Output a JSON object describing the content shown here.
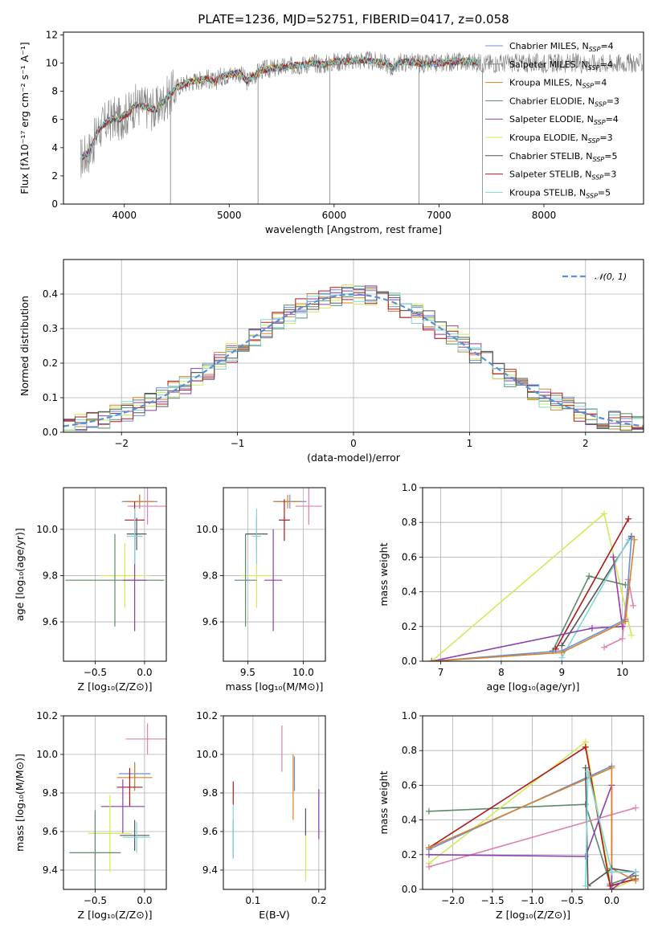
{
  "figure": {
    "title": "PLATE=1236, MJD=52751, FIBERID=0417, z=0.058"
  },
  "chart_data": [
    {
      "id": "spectrum",
      "type": "line",
      "xlabel": "wavelength [Angstrom, rest frame]",
      "ylabel": "Flux [fλ10⁻¹⁷ erg cm⁻² s⁻¹ A⁻¹]",
      "xlim": [
        3420,
        8950
      ],
      "ylim": [
        0,
        12.2
      ],
      "xticks": [
        4000,
        5000,
        6000,
        7000,
        8000
      ],
      "xtick_labels": [
        "4000",
        "5000",
        "6000",
        "7000",
        "8000"
      ],
      "yticks": [
        0,
        2,
        4,
        6,
        8,
        10,
        12
      ],
      "ytick_labels": [
        "0",
        "2",
        "4",
        "6",
        "8",
        "10",
        "12"
      ],
      "grid": false,
      "legend_position": "top-right",
      "continuum": [
        [
          3580,
          3.2
        ],
        [
          3650,
          3.6
        ],
        [
          3700,
          4.2
        ],
        [
          3750,
          5.2
        ],
        [
          3800,
          5.6
        ],
        [
          3850,
          5.9
        ],
        [
          3900,
          6.1
        ],
        [
          3950,
          6.0
        ],
        [
          4000,
          6.3
        ],
        [
          4050,
          6.5
        ],
        [
          4100,
          7.0
        ],
        [
          4200,
          6.9
        ],
        [
          4300,
          6.7
        ],
        [
          4400,
          7.5
        ],
        [
          4500,
          8.3
        ],
        [
          4600,
          8.6
        ],
        [
          4700,
          8.8
        ],
        [
          4800,
          8.9
        ],
        [
          4860,
          8.6
        ],
        [
          4900,
          9.0
        ],
        [
          5000,
          9.2
        ],
        [
          5100,
          9.3
        ],
        [
          5170,
          8.7
        ],
        [
          5200,
          8.9
        ],
        [
          5300,
          9.5
        ],
        [
          5400,
          9.6
        ],
        [
          5500,
          9.7
        ],
        [
          5600,
          9.8
        ],
        [
          5700,
          9.9
        ],
        [
          5800,
          10.0
        ],
        [
          5900,
          9.9
        ],
        [
          6000,
          10.1
        ],
        [
          6100,
          10.1
        ],
        [
          6200,
          10.2
        ],
        [
          6300,
          10.2
        ],
        [
          6400,
          10.1
        ],
        [
          6500,
          10.0
        ],
        [
          6560,
          9.6
        ],
        [
          6600,
          10.0
        ],
        [
          6700,
          10.1
        ],
        [
          6800,
          10.0
        ],
        [
          6900,
          9.9
        ],
        [
          7000,
          10.0
        ],
        [
          7100,
          10.1
        ],
        [
          7200,
          10.1
        ],
        [
          7300,
          10.1
        ],
        [
          7400,
          10.0
        ]
      ],
      "spikes": [
        [
          4440,
          0
        ],
        [
          5275,
          0
        ],
        [
          5960,
          0
        ],
        [
          6810,
          0
        ],
        [
          7415,
          0
        ]
      ],
      "series": [
        {
          "name": "Chabrier MILES, N",
          "sub": "SSP",
          "eq": "=4",
          "color": "#6a8fd8"
        },
        {
          "name": "Salpeter MILES, N",
          "sub": "SSP",
          "eq": "=4",
          "color": "#8a8a8a"
        },
        {
          "name": "Kroupa MILES, N",
          "sub": "SSP",
          "eq": "=4",
          "color": "#d7822a"
        },
        {
          "name": "Chabrier ELODIE, N",
          "sub": "SSP",
          "eq": "=3",
          "color": "#5d8a68"
        },
        {
          "name": "Salpeter ELODIE, N",
          "sub": "SSP",
          "eq": "=4",
          "color": "#8b3fb0"
        },
        {
          "name": "Kroupa ELODIE, N",
          "sub": "SSP",
          "eq": "=3",
          "color": "#d4e85a"
        },
        {
          "name": "Chabrier STELIB, N",
          "sub": "SSP",
          "eq": "=5",
          "color": "#555555"
        },
        {
          "name": "Salpeter STELIB, N",
          "sub": "SSP",
          "eq": "=3",
          "color": "#b01818"
        },
        {
          "name": "Kroupa STELIB, N",
          "sub": "SSP",
          "eq": "=5",
          "color": "#7fd6d9"
        }
      ]
    },
    {
      "id": "residuals",
      "type": "line",
      "xlabel": "(data-model)/error",
      "ylabel": "Normed distribution",
      "xlim": [
        -2.5,
        2.5
      ],
      "ylim": [
        0,
        0.5
      ],
      "xticks": [
        -2,
        -1,
        0,
        1,
        2
      ],
      "xtick_labels": [
        "−2",
        "−1",
        "0",
        "1",
        "2"
      ],
      "yticks": [
        0.0,
        0.1,
        0.2,
        0.3,
        0.4
      ],
      "ytick_labels": [
        "0.0",
        "0.1",
        "0.2",
        "0.3",
        "0.4"
      ],
      "grid": true,
      "legend_position": "top-right",
      "legend_label": "𝒩(0, 1)",
      "gaussian_color": "#5b8fd4",
      "bin_width": 0.1,
      "hist_colors": [
        "#6a8fd8",
        "#d7822a",
        "#5d8a68",
        "#8b3fb0",
        "#d4e85a",
        "#b01818",
        "#7fd6d9",
        "#555555"
      ]
    },
    {
      "id": "age-vs-Z",
      "type": "scatter",
      "xlabel": "Z [log₁₀(Z/Z⊙)]",
      "ylabel": "age  [log₁₀(age/yr)]",
      "xlim": [
        -0.82,
        0.22
      ],
      "ylim": [
        9.43,
        10.18
      ],
      "xticks": [
        -0.5,
        0.0
      ],
      "xtick_labels": [
        "−0.5",
        "0.0"
      ],
      "yticks": [
        9.6,
        9.8,
        10.0
      ],
      "ytick_labels": [
        "9.6",
        "9.8",
        "10.0"
      ],
      "grid": true,
      "points": [
        {
          "x": -0.05,
          "y": 10.12,
          "xe": 0.18,
          "ye": 0.03,
          "color": "#6a8fd8"
        },
        {
          "x": -0.05,
          "y": 10.12,
          "xe": 0.15,
          "ye": 0.03,
          "color": "#d7822a"
        },
        {
          "x": 0.03,
          "y": 10.1,
          "xe": 0.2,
          "ye": 0.08,
          "color": "#e07fb0"
        },
        {
          "x": -0.1,
          "y": 10.04,
          "xe": 0.1,
          "ye": 0.08,
          "color": "#b01818"
        },
        {
          "x": -0.08,
          "y": 9.98,
          "xe": 0.1,
          "ye": 0.07,
          "color": "#555555"
        },
        {
          "x": -0.2,
          "y": 9.8,
          "xe": 0.25,
          "ye": 0.14,
          "color": "#d4e85a"
        },
        {
          "x": -0.3,
          "y": 9.78,
          "xe": 0.5,
          "ye": 0.2,
          "color": "#5d8a68"
        },
        {
          "x": -0.1,
          "y": 9.78,
          "xe": 0.12,
          "ye": 0.22,
          "color": "#8b3fb0"
        },
        {
          "x": -0.1,
          "y": 9.97,
          "xe": 0.08,
          "ye": 0.12,
          "color": "#7fd6d9"
        }
      ]
    },
    {
      "id": "age-vs-mass",
      "type": "scatter",
      "xlabel": "mass [log₁₀(M/M⊙)]",
      "ylabel": "",
      "xlim": [
        9.28,
        10.2
      ],
      "ylim": [
        9.43,
        10.18
      ],
      "xticks": [
        9.5,
        10.0
      ],
      "xtick_labels": [
        "9.5",
        "10.0"
      ],
      "yticks": [
        9.6,
        9.8,
        10.0
      ],
      "ytick_labels": [
        "9.6",
        "9.8",
        "10.0"
      ],
      "grid": true,
      "points": [
        {
          "x": 9.88,
          "y": 10.12,
          "xe": 0.15,
          "ye": 0.03,
          "color": "#6a8fd8"
        },
        {
          "x": 9.86,
          "y": 10.12,
          "xe": 0.12,
          "ye": 0.03,
          "color": "#d7822a"
        },
        {
          "x": 10.05,
          "y": 10.1,
          "xe": 0.12,
          "ye": 0.08,
          "color": "#e07fb0"
        },
        {
          "x": 9.83,
          "y": 10.04,
          "xe": 0.05,
          "ye": 0.09,
          "color": "#b01818"
        },
        {
          "x": 9.58,
          "y": 9.98,
          "xe": 0.1,
          "ye": 0.07,
          "color": "#555555"
        },
        {
          "x": 9.58,
          "y": 9.8,
          "xe": 0.15,
          "ye": 0.14,
          "color": "#d4e85a"
        },
        {
          "x": 9.48,
          "y": 9.78,
          "xe": 0.1,
          "ye": 0.2,
          "color": "#5d8a68"
        },
        {
          "x": 9.73,
          "y": 9.78,
          "xe": 0.08,
          "ye": 0.22,
          "color": "#8b3fb0"
        },
        {
          "x": 9.58,
          "y": 9.97,
          "xe": 0.04,
          "ye": 0.12,
          "color": "#7fd6d9"
        }
      ]
    },
    {
      "id": "weight-vs-age",
      "type": "line",
      "xlabel": "age  [log₁₀(age/yr)]",
      "ylabel": "mass weight",
      "xlim": [
        6.7,
        10.35
      ],
      "ylim": [
        0,
        1.0
      ],
      "xticks": [
        7,
        8,
        9,
        10
      ],
      "xtick_labels": [
        "7",
        "8",
        "9",
        "10"
      ],
      "yticks": [
        0.0,
        0.2,
        0.4,
        0.6,
        0.8,
        1.0
      ],
      "ytick_labels": [
        "0.0",
        "0.2",
        "0.4",
        "0.6",
        "0.8",
        "1.0"
      ],
      "grid": true,
      "series": [
        {
          "color": "#d4e85a",
          "pts": [
            [
              6.85,
              0.0
            ],
            [
              9.7,
              0.85
            ],
            [
              10.15,
              0.15
            ]
          ]
        },
        {
          "color": "#e07fb0",
          "pts": [
            [
              9.7,
              0.08
            ],
            [
              10.0,
              0.13
            ],
            [
              10.1,
              0.47
            ],
            [
              10.18,
              0.32
            ]
          ]
        },
        {
          "color": "#5d8a68",
          "pts": [
            [
              8.85,
              0.06
            ],
            [
              9.45,
              0.49
            ],
            [
              10.05,
              0.44
            ]
          ]
        },
        {
          "color": "#b01818",
          "pts": [
            [
              8.9,
              0.07
            ],
            [
              10.1,
              0.82
            ]
          ]
        },
        {
          "color": "#555555",
          "pts": [
            [
              9.0,
              0.09
            ],
            [
              10.15,
              0.72
            ]
          ]
        },
        {
          "color": "#7fd6d9",
          "pts": [
            [
              9.0,
              0.02
            ],
            [
              10.1,
              0.7
            ]
          ]
        },
        {
          "color": "#8b3fb0",
          "pts": [
            [
              6.85,
              0.0
            ],
            [
              9.5,
              0.19
            ],
            [
              10.0,
              0.2
            ],
            [
              9.85,
              0.6
            ]
          ]
        },
        {
          "color": "#6a8fd8",
          "pts": [
            [
              6.85,
              0.0
            ],
            [
              9.0,
              0.06
            ],
            [
              10.05,
              0.24
            ],
            [
              10.15,
              0.71
            ]
          ]
        },
        {
          "color": "#d7822a",
          "pts": [
            [
              6.85,
              0.0
            ],
            [
              9.0,
              0.05
            ],
            [
              10.05,
              0.23
            ],
            [
              10.2,
              0.7
            ]
          ]
        }
      ]
    },
    {
      "id": "mass-vs-Z",
      "type": "scatter",
      "xlabel": "Z [log₁₀(Z/Z⊙)]",
      "ylabel": "mass [log₁₀(M/M⊙)]",
      "xlim": [
        -0.82,
        0.22
      ],
      "ylim": [
        9.3,
        10.2
      ],
      "xticks": [
        -0.5,
        0.0
      ],
      "xtick_labels": [
        "−0.5",
        "0.0"
      ],
      "yticks": [
        9.4,
        9.6,
        9.8,
        10.0,
        10.2
      ],
      "ytick_labels": [
        "9.4",
        "9.6",
        "9.8",
        "10.0",
        "10.2"
      ],
      "grid": true,
      "points": [
        {
          "x": 0.03,
          "y": 10.08,
          "xe": 0.22,
          "ye": 0.08,
          "color": "#e07fb0"
        },
        {
          "x": -0.1,
          "y": 9.9,
          "xe": 0.16,
          "ye": 0.06,
          "color": "#6a8fd8"
        },
        {
          "x": -0.1,
          "y": 9.88,
          "xe": 0.18,
          "ye": 0.07,
          "color": "#d7822a"
        },
        {
          "x": -0.15,
          "y": 9.83,
          "xe": 0.13,
          "ye": 0.1,
          "color": "#b01818"
        },
        {
          "x": -0.22,
          "y": 9.73,
          "xe": 0.22,
          "ye": 0.14,
          "color": "#8b3fb0"
        },
        {
          "x": -0.35,
          "y": 9.59,
          "xe": 0.22,
          "ye": 0.2,
          "color": "#d4e85a"
        },
        {
          "x": -0.5,
          "y": 9.49,
          "xe": 0.26,
          "ye": 0.22,
          "color": "#5d8a68"
        },
        {
          "x": -0.1,
          "y": 9.58,
          "xe": 0.15,
          "ye": 0.08,
          "color": "#555555"
        },
        {
          "x": -0.08,
          "y": 9.57,
          "xe": 0.14,
          "ye": 0.08,
          "color": "#7fd6d9"
        }
      ]
    },
    {
      "id": "mass-vs-EBV",
      "type": "scatter",
      "xlabel": "E(B-V)",
      "ylabel": "",
      "xlim": [
        0.055,
        0.21
      ],
      "ylim": [
        9.3,
        10.2
      ],
      "xticks": [
        0.1,
        0.2
      ],
      "xtick_labels": [
        "0.1",
        "0.2"
      ],
      "yticks": [
        9.4,
        9.6,
        9.8,
        10.0,
        10.2
      ],
      "ytick_labels": [
        "9.4",
        "9.6",
        "9.8",
        "10.0",
        "10.2"
      ],
      "grid": true,
      "points": [
        {
          "x": 0.144,
          "y": 10.03,
          "xe": 0.0,
          "ye": 0.12,
          "color": "#e07fb0"
        },
        {
          "x": 0.163,
          "y": 9.9,
          "xe": 0.0,
          "ye": 0.09,
          "color": "#6a8fd8"
        },
        {
          "x": 0.161,
          "y": 9.83,
          "xe": 0.0,
          "ye": 0.17,
          "color": "#d7822a"
        },
        {
          "x": 0.07,
          "y": 9.8,
          "xe": 0.0,
          "ye": 0.06,
          "color": "#b01818"
        },
        {
          "x": 0.2,
          "y": 9.69,
          "xe": 0.0,
          "ye": 0.13,
          "color": "#8b3fb0"
        },
        {
          "x": 0.18,
          "y": 9.52,
          "xe": 0.0,
          "ye": 0.18,
          "color": "#d4e85a"
        },
        {
          "x": 0.07,
          "y": 9.56,
          "xe": 0.0,
          "ye": 0.1,
          "color": "#5d8a68"
        },
        {
          "x": 0.18,
          "y": 9.65,
          "xe": 0.0,
          "ye": 0.07,
          "color": "#555555"
        },
        {
          "x": 0.07,
          "y": 9.6,
          "xe": 0.0,
          "ye": 0.14,
          "color": "#7fd6d9"
        }
      ]
    },
    {
      "id": "weight-vs-Z",
      "type": "line",
      "xlabel": "Z [log₁₀(Z/Z⊙)]",
      "ylabel": "mass weight",
      "xlim": [
        -2.38,
        0.4
      ],
      "ylim": [
        0,
        1.0
      ],
      "xticks": [
        -2.0,
        -1.5,
        -1.0,
        -0.5,
        0.0
      ],
      "xtick_labels": [
        "−2.0",
        "−1.5",
        "−1.0",
        "−0.5",
        "0.0"
      ],
      "yticks": [
        0.0,
        0.2,
        0.4,
        0.6,
        0.8,
        1.0
      ],
      "ytick_labels": [
        "0.0",
        "0.2",
        "0.4",
        "0.6",
        "0.8",
        "1.0"
      ],
      "grid": true,
      "series": [
        {
          "color": "#5d8a68",
          "pts": [
            [
              -2.3,
              0.45
            ],
            [
              -0.33,
              0.49
            ],
            [
              -0.02,
              0.03
            ],
            [
              0.3,
              0.08
            ]
          ]
        },
        {
          "color": "#d4e85a",
          "pts": [
            [
              -2.3,
              0.15
            ],
            [
              -0.33,
              0.85
            ],
            [
              0.0,
              0.0
            ],
            [
              0.3,
              0.06
            ]
          ]
        },
        {
          "color": "#b01818",
          "pts": [
            [
              -2.3,
              0.24
            ],
            [
              -0.33,
              0.82
            ],
            [
              -0.02,
              0.02
            ],
            [
              0.3,
              0.06
            ]
          ]
        },
        {
          "color": "#e07fb0",
          "pts": [
            [
              -2.3,
              0.13
            ],
            [
              0.3,
              0.47
            ]
          ]
        },
        {
          "color": "#8b3fb0",
          "pts": [
            [
              -2.3,
              0.2
            ],
            [
              -0.33,
              0.19
            ],
            [
              0.0,
              0.6
            ],
            [
              0.0,
              0.0
            ],
            [
              0.3,
              0.1
            ]
          ]
        },
        {
          "color": "#6a8fd8",
          "pts": [
            [
              -2.3,
              0.23
            ],
            [
              0.0,
              0.71
            ]
          ]
        },
        {
          "color": "#d7822a",
          "pts": [
            [
              -2.3,
              0.24
            ],
            [
              0.0,
              0.7
            ],
            [
              0.0,
              0.12
            ],
            [
              0.3,
              0.05
            ]
          ]
        },
        {
          "color": "#555555",
          "pts": [
            [
              -0.33,
              0.7
            ],
            [
              -0.3,
              0.02
            ],
            [
              0.0,
              0.12
            ],
            [
              0.3,
              0.1
            ]
          ]
        },
        {
          "color": "#7fd6d9",
          "pts": [
            [
              -0.33,
              0.02
            ],
            [
              -0.3,
              0.68
            ],
            [
              0.0,
              0.1
            ],
            [
              0.3,
              0.1
            ]
          ]
        }
      ]
    }
  ]
}
